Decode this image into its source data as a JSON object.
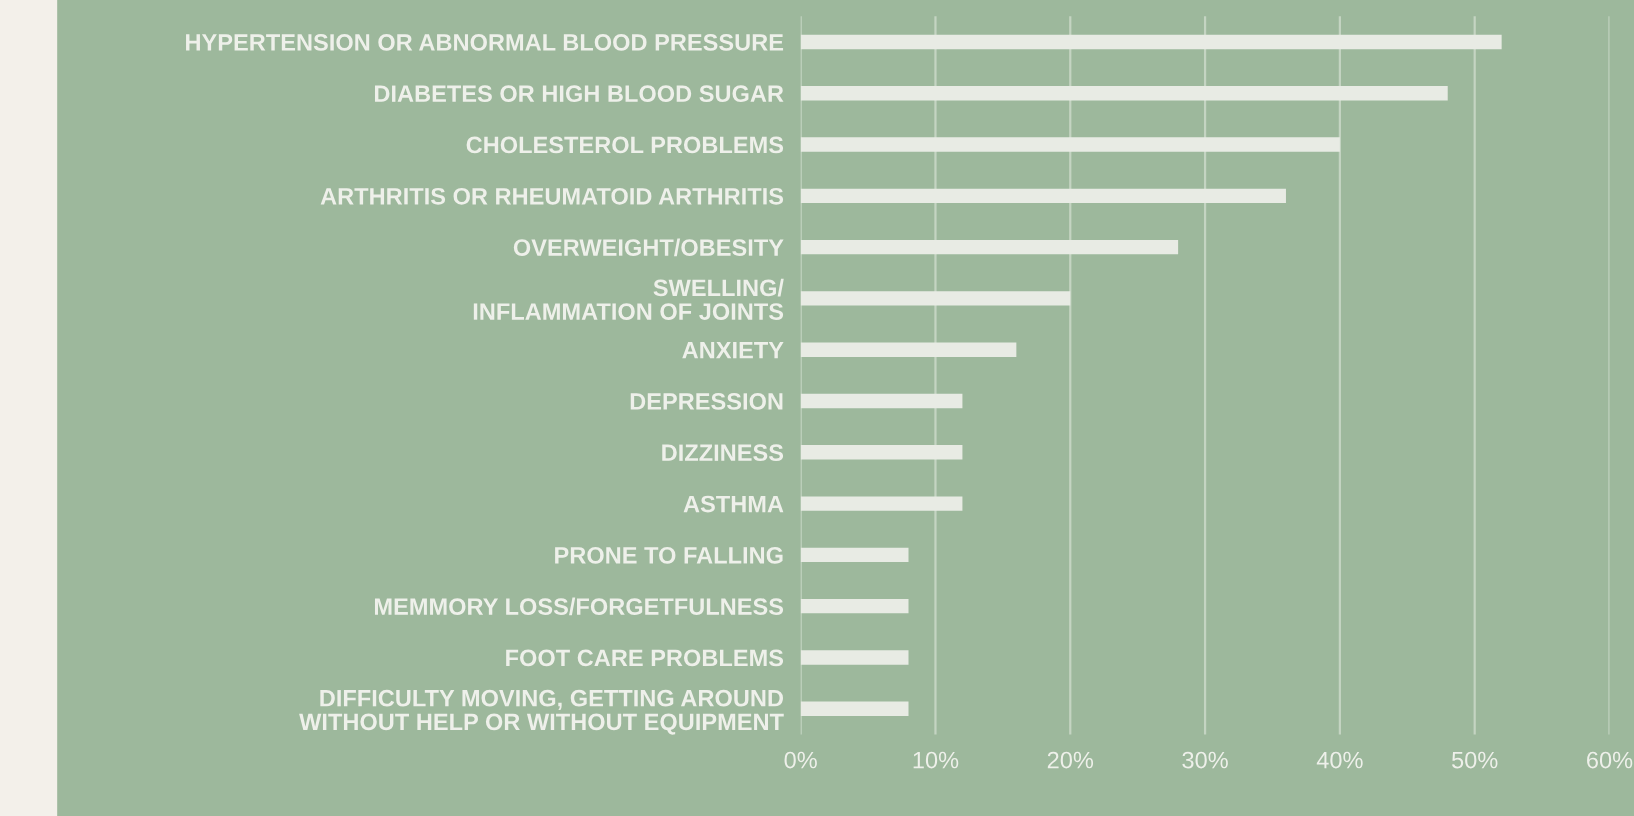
{
  "chart_data": {
    "type": "bar",
    "orientation": "horizontal",
    "categories": [
      "HYPERTENSION OR ABNORMAL BLOOD PRESSURE",
      "DIABETES OR HIGH BLOOD SUGAR",
      "CHOLESTEROL PROBLEMS",
      "ARTHRITIS OR RHEUMATOID ARTHRITIS",
      "OVERWEIGHT/OBESITY",
      "SWELLING/\nINFLAMMATION OF JOINTS",
      "ANXIETY",
      "DEPRESSION",
      "DIZZINESS",
      "ASTHMA",
      "PRONE TO FALLING",
      "MEMMORY LOSS/FORGETFULNESS",
      "FOOT CARE PROBLEMS",
      "DIFFICULTY MOVING, GETTING AROUND\nWITHOUT HELP OR WITHOUT EQUIPMENT"
    ],
    "values": [
      52,
      48,
      40,
      36,
      28,
      20,
      16,
      12,
      12,
      12,
      8,
      8,
      8,
      8
    ],
    "color": "#e8ebe4",
    "xlim": [
      0,
      60
    ],
    "xticks": [
      {
        "value": 0,
        "label": "0%"
      },
      {
        "value": 10,
        "label": "10%"
      },
      {
        "value": 20,
        "label": "20%"
      },
      {
        "value": 30,
        "label": "30%"
      },
      {
        "value": 40,
        "label": "40%"
      },
      {
        "value": 50,
        "label": "50%"
      },
      {
        "value": 60,
        "label": "60%"
      }
    ],
    "grid": "x",
    "legend": false
  }
}
